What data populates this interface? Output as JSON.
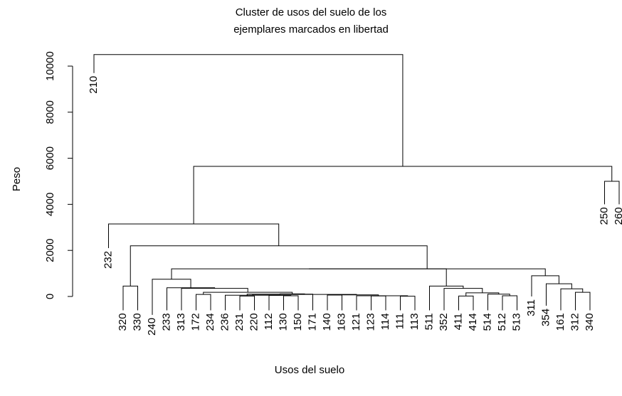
{
  "chart_data": {
    "type": "dendrogram",
    "title_lines": [
      "Cluster de usos del suelo de los",
      "ejemplares marcados en libertad"
    ],
    "xlabel": "Usos del suelo",
    "ylabel": "Peso",
    "ylim": [
      0,
      10500
    ],
    "yticks": [
      0,
      2000,
      4000,
      6000,
      8000,
      10000
    ],
    "leaves": [
      {
        "label": "210",
        "y": 9700
      },
      {
        "label": "232",
        "y": 2100
      },
      {
        "label": "320",
        "y": -600
      },
      {
        "label": "330",
        "y": -600
      },
      {
        "label": "240",
        "y": -800
      },
      {
        "label": "233",
        "y": -600
      },
      {
        "label": "313",
        "y": -600
      },
      {
        "label": "172",
        "y": -600
      },
      {
        "label": "234",
        "y": -600
      },
      {
        "label": "236",
        "y": -600
      },
      {
        "label": "231",
        "y": -600
      },
      {
        "label": "220",
        "y": -600
      },
      {
        "label": "112",
        "y": -600
      },
      {
        "label": "130",
        "y": -600
      },
      {
        "label": "150",
        "y": -600
      },
      {
        "label": "171",
        "y": -600
      },
      {
        "label": "140",
        "y": -600
      },
      {
        "label": "163",
        "y": -600
      },
      {
        "label": "121",
        "y": -600
      },
      {
        "label": "123",
        "y": -600
      },
      {
        "label": "114",
        "y": -600
      },
      {
        "label": "111",
        "y": -600
      },
      {
        "label": "113",
        "y": -600
      },
      {
        "label": "511",
        "y": -600
      },
      {
        "label": "352",
        "y": -600
      },
      {
        "label": "411",
        "y": -600
      },
      {
        "label": "414",
        "y": -600
      },
      {
        "label": "514",
        "y": -600
      },
      {
        "label": "512",
        "y": -600
      },
      {
        "label": "513",
        "y": -600
      },
      {
        "label": "311",
        "y": 0
      },
      {
        "label": "354",
        "y": -400
      },
      {
        "label": "161",
        "y": -600
      },
      {
        "label": "312",
        "y": -600
      },
      {
        "label": "340",
        "y": -600
      },
      {
        "label": "250",
        "y": 4000
      },
      {
        "label": "260",
        "y": 4000
      }
    ],
    "merges": [
      {
        "a": 11,
        "b": 12,
        "h": 20
      },
      {
        "a": 14,
        "b": 15,
        "h": 30
      },
      {
        "a": -2,
        "b": 13,
        "h": 45
      },
      {
        "a": 17,
        "b": 18,
        "h": 60
      },
      {
        "a": 20,
        "b": 21,
        "h": 25
      },
      {
        "a": 22,
        "b": 23,
        "h": 10
      },
      {
        "a": -6,
        "b": 19,
        "h": 30
      },
      {
        "a": -5,
        "b": -4,
        "h": 70
      },
      {
        "a": 10,
        "b": -3,
        "h": 55
      },
      {
        "a": -9,
        "b": -8,
        "h": 90
      },
      {
        "a": -1,
        "b": 16,
        "h": 100
      },
      {
        "a": -11,
        "b": -10,
        "h": 110
      },
      {
        "a": 8,
        "b": 9,
        "h": 90
      },
      {
        "a": -13,
        "b": -12,
        "h": 180
      },
      {
        "a": -14,
        "b": 7,
        "h": 350
      },
      {
        "a": 6,
        "b": -15,
        "h": 380
      },
      {
        "a": 26,
        "b": 27,
        "h": 20
      },
      {
        "a": 29,
        "b": 30,
        "h": 30
      },
      {
        "a": 28,
        "b": -18,
        "h": 100
      },
      {
        "a": -17,
        "b": -19,
        "h": 160
      },
      {
        "a": 25,
        "b": -20,
        "h": 350
      },
      {
        "a": 24,
        "b": -21,
        "h": 450
      },
      {
        "a": 34,
        "b": 35,
        "h": 180
      },
      {
        "a": 33,
        "b": -23,
        "h": 330
      },
      {
        "a": 32,
        "b": -24,
        "h": 550
      },
      {
        "a": 31,
        "b": -25,
        "h": 900
      },
      {
        "a": 5,
        "b": -16,
        "h": 750
      },
      {
        "a": -27,
        "b": -22,
        "h": 1200
      },
      {
        "a": -26,
        "b": -28,
        "h": 1200
      },
      {
        "a": 3,
        "b": 4,
        "h": 450
      },
      {
        "a": -30,
        "b": -29,
        "h": 2200
      },
      {
        "a": 2,
        "b": -31,
        "h": 3150
      },
      {
        "a": 36,
        "b": 37,
        "h": 5000
      },
      {
        "a": -32,
        "b": -33,
        "h": 5650
      },
      {
        "a": 1,
        "b": -34,
        "h": 10500
      }
    ]
  }
}
